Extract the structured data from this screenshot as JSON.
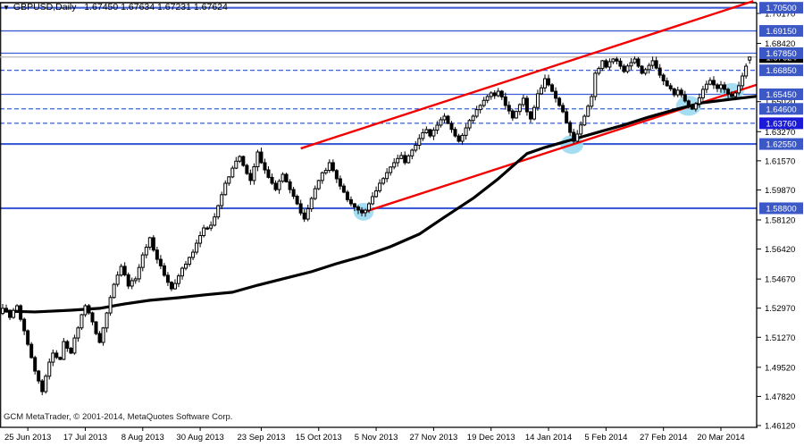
{
  "title": {
    "marker": "▼",
    "text": "GBPUSD,Daily   1.67450 1.67634 1.67231 1.67624"
  },
  "copyright": "GCM MetaTrader, © 2001-2014, MetaQuotes Software Corp.",
  "colors": {
    "background": "#ffffff",
    "frame": "#000000",
    "level_blue": "#3e5ed6",
    "tag_blue": "#3c58c6",
    "tag_selected_blue": "#1a1ad8",
    "trend_red": "#f30000",
    "ma_black": "#000000",
    "ellipse_cyan": "#9bdaf2",
    "bid_line_gray": "#b0b0b0",
    "current_tag_black": "#000000",
    "candle_up_fill": "#ffffff",
    "candle_down_fill": "#000000",
    "text_black": "#000000"
  },
  "chart_data": {
    "type": "candlestick",
    "symbol": "GBPUSD",
    "timeframe": "Daily",
    "title_ohlc": {
      "open": 1.6745,
      "high": 1.67634,
      "low": 1.67231,
      "close": 1.67624
    },
    "current_price": 1.67624,
    "y_axis": {
      "price_top": 1.70953,
      "price_bottom": 1.46016,
      "ticks": [
        1.7017,
        1.6842,
        1.6502,
        1.6327,
        1.6157,
        1.5987,
        1.5812,
        1.5642,
        1.5467,
        1.5297,
        1.5127,
        1.4952,
        1.4782,
        1.4612
      ]
    },
    "x_axis": {
      "labels": [
        {
          "text": "25 Jun 2013",
          "i": 7
        },
        {
          "text": "17 Jul 2013",
          "i": 23
        },
        {
          "text": "8 Aug 2013",
          "i": 39
        },
        {
          "text": "30 Aug 2013",
          "i": 55
        },
        {
          "text": "23 Sep 2013",
          "i": 72
        },
        {
          "text": "15 Oct 2013",
          "i": 88
        },
        {
          "text": "5 Nov 2013",
          "i": 104
        },
        {
          "text": "27 Nov 2013",
          "i": 120
        },
        {
          "text": "19 Dec 2013",
          "i": 136
        },
        {
          "text": "14 Jan 2014",
          "i": 152
        },
        {
          "text": "5 Feb 2014",
          "i": 168
        },
        {
          "text": "27 Feb 2014",
          "i": 184
        },
        {
          "text": "20 Mar 2014",
          "i": 200
        }
      ]
    },
    "levels": [
      {
        "price": 1.705,
        "style": "solid",
        "width": 2,
        "selected": false
      },
      {
        "price": 1.6915,
        "style": "solid",
        "width": 1,
        "selected": false
      },
      {
        "price": 1.6785,
        "style": "solid",
        "width": 1,
        "selected": false
      },
      {
        "price": 1.6685,
        "style": "dashed",
        "width": 1,
        "selected": false
      },
      {
        "price": 1.6545,
        "style": "solid",
        "width": 1,
        "selected": false
      },
      {
        "price": 1.646,
        "style": "dashed",
        "width": 1,
        "selected": false
      },
      {
        "price": 1.6376,
        "style": "dashed",
        "width": 1,
        "selected": true
      },
      {
        "price": 1.6255,
        "style": "solid",
        "width": 2,
        "selected": false
      },
      {
        "price": 1.588,
        "style": "solid",
        "width": 2,
        "selected": false
      }
    ],
    "top_border_line": true,
    "candles": {
      "count": 209,
      "last": {
        "o": 1.6745,
        "h": 1.67634,
        "l": 1.67231,
        "c": 1.67624
      },
      "close_waypoints": [
        [
          0,
          1.5296
        ],
        [
          2,
          1.5243
        ],
        [
          4,
          1.5311
        ],
        [
          6,
          1.5165
        ],
        [
          9,
          1.493
        ],
        [
          11,
          1.481
        ],
        [
          13,
          1.4982
        ],
        [
          14,
          1.5035
        ],
        [
          16,
          1.4998
        ],
        [
          17,
          1.5102
        ],
        [
          19,
          1.5035
        ],
        [
          20,
          1.5123
        ],
        [
          22,
          1.5259
        ],
        [
          23,
          1.5311
        ],
        [
          25,
          1.5217
        ],
        [
          27,
          1.5097
        ],
        [
          29,
          1.5269
        ],
        [
          31,
          1.5436
        ],
        [
          33,
          1.5541
        ],
        [
          35,
          1.5426
        ],
        [
          37,
          1.5468
        ],
        [
          39,
          1.5608
        ],
        [
          41,
          1.5708
        ],
        [
          43,
          1.5582
        ],
        [
          45,
          1.5489
        ],
        [
          47,
          1.541
        ],
        [
          50,
          1.553
        ],
        [
          52,
          1.5593
        ],
        [
          54,
          1.5676
        ],
        [
          56,
          1.5765
        ],
        [
          58,
          1.5781
        ],
        [
          60,
          1.5895
        ],
        [
          62,
          1.6026
        ],
        [
          64,
          1.6114
        ],
        [
          66,
          1.6182
        ],
        [
          67,
          1.613
        ],
        [
          69,
          1.6042
        ],
        [
          71,
          1.6208
        ],
        [
          73,
          1.6104
        ],
        [
          75,
          1.6026
        ],
        [
          76,
          1.5989
        ],
        [
          78,
          1.6078
        ],
        [
          80,
          1.5989
        ],
        [
          82,
          1.5906
        ],
        [
          84,
          1.5817
        ],
        [
          86,
          1.5937
        ],
        [
          88,
          1.6042
        ],
        [
          91,
          1.6146
        ],
        [
          93,
          1.6052
        ],
        [
          95,
          1.5974
        ],
        [
          97,
          1.5906
        ],
        [
          100,
          1.5854
        ],
        [
          101,
          1.5869
        ],
        [
          103,
          1.5948
        ],
        [
          105,
          1.6026
        ],
        [
          107,
          1.6088
        ],
        [
          109,
          1.6146
        ],
        [
          111,
          1.6188
        ],
        [
          112,
          1.6146
        ],
        [
          114,
          1.6219
        ],
        [
          116,
          1.6287
        ],
        [
          118,
          1.6339
        ],
        [
          119,
          1.6302
        ],
        [
          121,
          1.6365
        ],
        [
          123,
          1.6417
        ],
        [
          124,
          1.6375
        ],
        [
          126,
          1.6302
        ],
        [
          127,
          1.6271
        ],
        [
          129,
          1.6349
        ],
        [
          131,
          1.6417
        ],
        [
          133,
          1.648
        ],
        [
          135,
          1.6532
        ],
        [
          136,
          1.6553
        ],
        [
          137,
          1.6537
        ],
        [
          138,
          1.6563
        ],
        [
          140,
          1.648
        ],
        [
          142,
          1.6407
        ],
        [
          144,
          1.6485
        ],
        [
          145,
          1.6522
        ],
        [
          146,
          1.6443
        ],
        [
          147,
          1.6401
        ],
        [
          149,
          1.6548
        ],
        [
          151,
          1.6636
        ],
        [
          152,
          1.66
        ],
        [
          154,
          1.6522
        ],
        [
          156,
          1.6443
        ],
        [
          158,
          1.6323
        ],
        [
          159,
          1.6271
        ],
        [
          160,
          1.6313
        ],
        [
          162,
          1.6417
        ],
        [
          164,
          1.6532
        ],
        [
          165,
          1.6668
        ],
        [
          167,
          1.6741
        ],
        [
          168,
          1.6704
        ],
        [
          170,
          1.6751
        ],
        [
          172,
          1.6709
        ],
        [
          173,
          1.6678
        ],
        [
          175,
          1.673
        ],
        [
          176,
          1.6751
        ],
        [
          177,
          1.6709
        ],
        [
          178,
          1.6668
        ],
        [
          179,
          1.6689
        ],
        [
          181,
          1.6741
        ],
        [
          183,
          1.6657
        ],
        [
          185,
          1.6595
        ],
        [
          187,
          1.6542
        ],
        [
          188,
          1.6569
        ],
        [
          190,
          1.6506
        ],
        [
          192,
          1.6459
        ],
        [
          193,
          1.649
        ],
        [
          195,
          1.6574
        ],
        [
          197,
          1.6626
        ],
        [
          198,
          1.66
        ],
        [
          199,
          1.6579
        ],
        [
          200,
          1.66
        ],
        [
          201,
          1.6574
        ],
        [
          203,
          1.6532
        ],
        [
          204,
          1.6553
        ],
        [
          205,
          1.6595
        ],
        [
          206,
          1.6652
        ],
        [
          207,
          1.6709
        ],
        [
          208,
          1.6762
        ]
      ]
    },
    "moving_average": {
      "points": [
        [
          0,
          1.528
        ],
        [
          9,
          1.5275
        ],
        [
          19,
          1.5285
        ],
        [
          27,
          1.5296
        ],
        [
          34,
          1.5322
        ],
        [
          41,
          1.5343
        ],
        [
          49,
          1.5358
        ],
        [
          56,
          1.5374
        ],
        [
          64,
          1.539
        ],
        [
          71,
          1.5431
        ],
        [
          79,
          1.5473
        ],
        [
          86,
          1.551
        ],
        [
          93,
          1.5557
        ],
        [
          101,
          1.5604
        ],
        [
          108,
          1.5656
        ],
        [
          116,
          1.5729
        ],
        [
          123,
          1.5828
        ],
        [
          131,
          1.5938
        ],
        [
          138,
          1.6052
        ],
        [
          146,
          1.6199
        ],
        [
          151,
          1.6235
        ],
        [
          158,
          1.6277
        ],
        [
          165,
          1.6319
        ],
        [
          173,
          1.6366
        ],
        [
          180,
          1.6413
        ],
        [
          188,
          1.646
        ],
        [
          195,
          1.6496
        ],
        [
          203,
          1.6517
        ],
        [
          210,
          1.6533
        ]
      ]
    },
    "trendlines": [
      {
        "name": "upper",
        "from": [
          83,
          1.6229
        ],
        "to": [
          209,
          1.7089
        ]
      },
      {
        "name": "lower",
        "from": [
          100,
          1.5854
        ],
        "to": [
          210,
          1.6601
        ]
      }
    ],
    "ellipses": [
      {
        "i": 100.5,
        "price": 1.586,
        "ri": 2.8,
        "rp": 0.0052
      },
      {
        "i": 158.5,
        "price": 1.6252,
        "ri": 3.2,
        "rp": 0.0055
      },
      {
        "i": 191.0,
        "price": 1.6478,
        "ri": 3.5,
        "rp": 0.0058
      },
      {
        "i": 203.0,
        "price": 1.6562,
        "ri": 3.4,
        "rp": 0.0048
      }
    ]
  }
}
